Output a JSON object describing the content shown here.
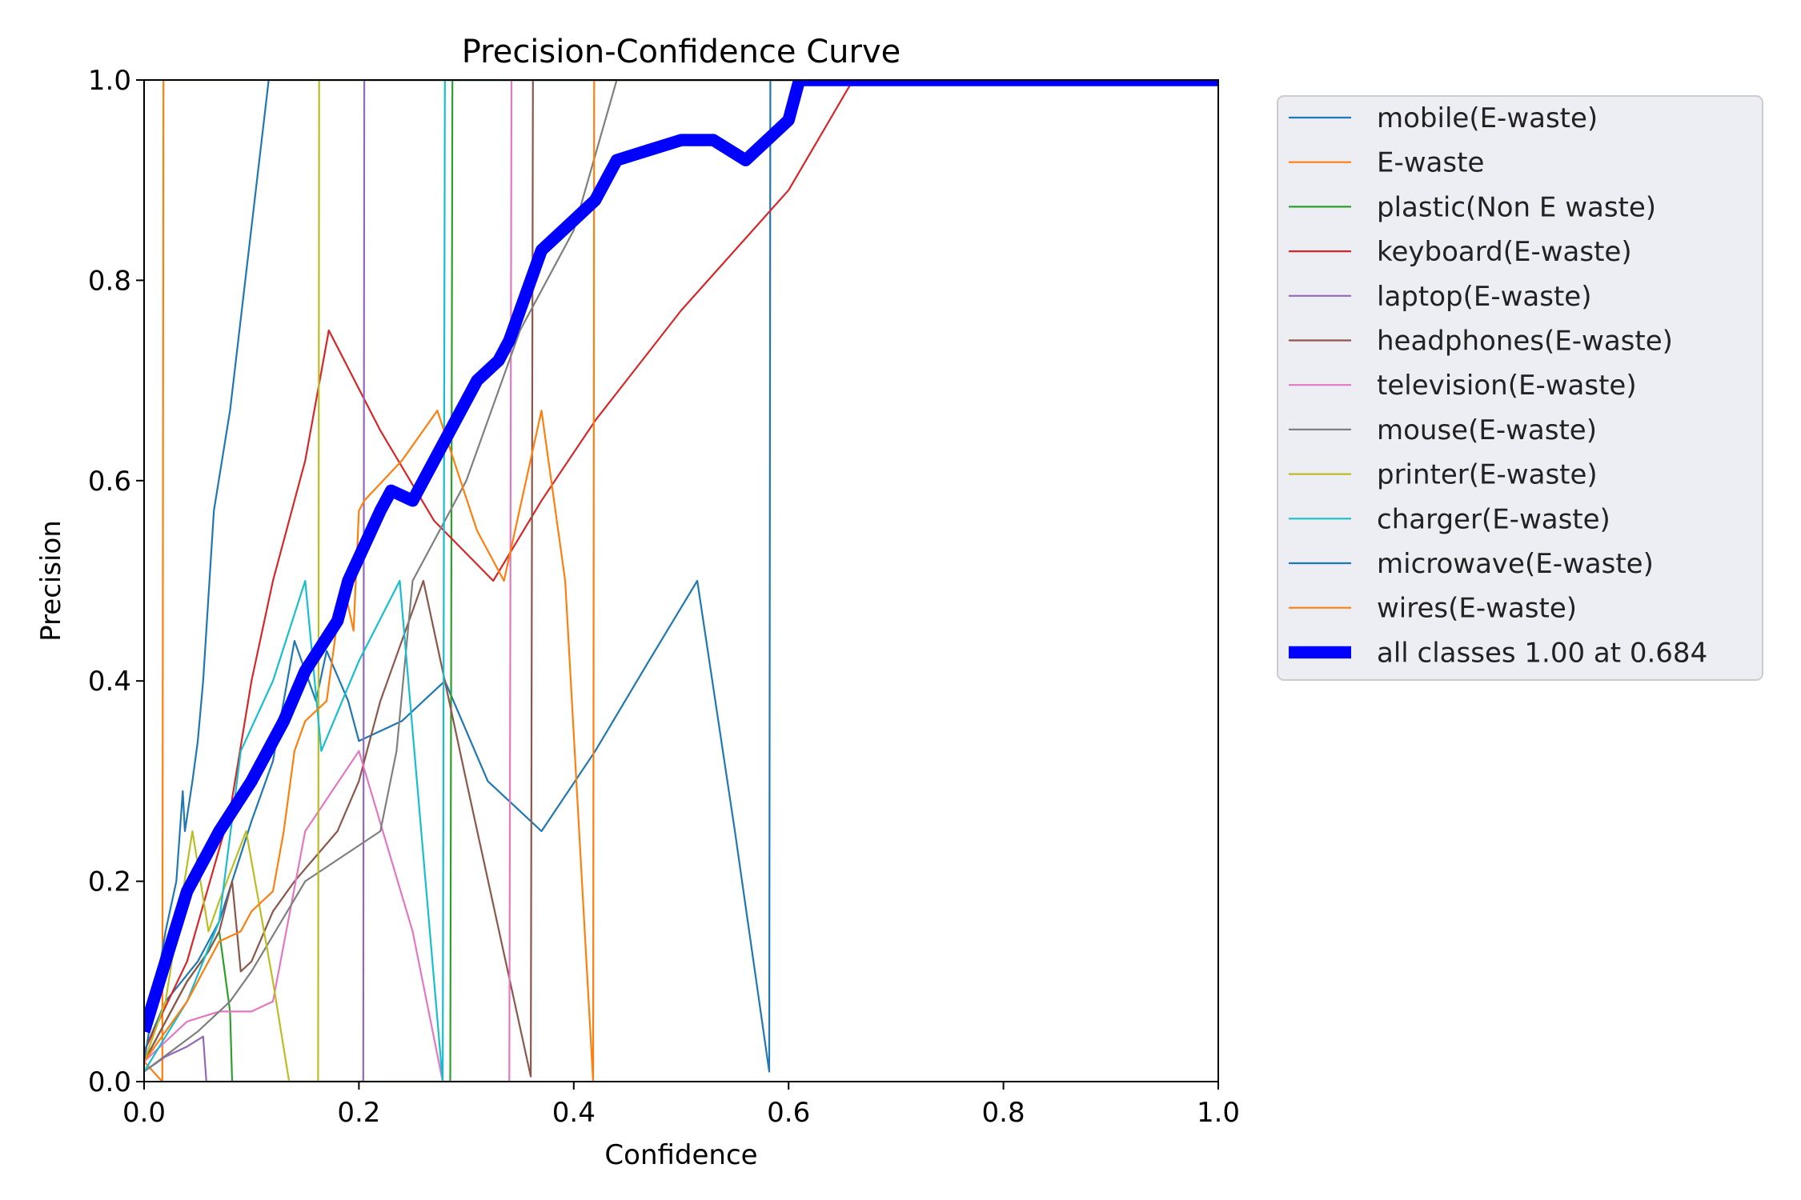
{
  "chart_data": {
    "type": "line",
    "title": "Precision-Confidence Curve",
    "xlabel": "Confidence",
    "ylabel": "Precision",
    "xlim": [
      0,
      1
    ],
    "ylim": [
      0,
      1
    ],
    "xticks": [
      "0.0",
      "0.2",
      "0.4",
      "0.6",
      "0.8",
      "1.0"
    ],
    "yticks": [
      "0.0",
      "0.2",
      "0.4",
      "0.6",
      "0.8",
      "1.0"
    ],
    "grid": false,
    "legend_position": "outside-right",
    "series": [
      {
        "name": "mobile(E-waste)",
        "color": "#1f77b4",
        "width": 1,
        "x": [
          0,
          0.02,
          0.05,
          0.07,
          0.1,
          0.12,
          0.14,
          0.16,
          0.17,
          0.19,
          0.2,
          0.24,
          0.28,
          0.32,
          0.37,
          0.42,
          0.47,
          0.515,
          0.55,
          0.582,
          0.583,
          1.0
        ],
        "y": [
          0.03,
          0.08,
          0.12,
          0.16,
          0.26,
          0.32,
          0.44,
          0.38,
          0.43,
          0.38,
          0.34,
          0.36,
          0.4,
          0.3,
          0.25,
          0.33,
          0.42,
          0.5,
          0.25,
          0.01,
          1.0,
          1.0
        ]
      },
      {
        "name": "E-waste",
        "color": "#ff7f0e",
        "width": 1,
        "x": [
          0,
          0.017,
          0.018,
          1.0
        ],
        "y": [
          0.02,
          0.0,
          1.0,
          1.0
        ]
      },
      {
        "name": "plastic(Non E waste)",
        "color": "#2ca02c",
        "width": 1,
        "x": [
          0,
          0.02,
          0.04,
          0.06,
          0.07,
          0.08,
          0.082,
          0.285,
          0.287,
          1.0
        ],
        "y": [
          0.02,
          0.06,
          0.1,
          0.13,
          0.15,
          0.07,
          0.0,
          0.0,
          1.0,
          1.0
        ]
      },
      {
        "name": "keyboard(E-waste)",
        "color": "#d62728",
        "width": 1,
        "x": [
          0,
          0.04,
          0.08,
          0.1,
          0.12,
          0.15,
          0.172,
          0.22,
          0.27,
          0.325,
          0.37,
          0.42,
          0.5,
          0.6,
          0.66,
          1.0
        ],
        "y": [
          0.03,
          0.12,
          0.27,
          0.4,
          0.5,
          0.62,
          0.75,
          0.65,
          0.56,
          0.5,
          0.58,
          0.66,
          0.77,
          0.89,
          1.0,
          1.0
        ]
      },
      {
        "name": "laptop(E-waste)",
        "color": "#9467bd",
        "width": 1,
        "x": [
          0,
          0.02,
          0.04,
          0.055,
          0.058,
          0.204,
          0.205,
          1.0
        ],
        "y": [
          0.01,
          0.025,
          0.035,
          0.045,
          0.0,
          0.0,
          1.0,
          1.0
        ]
      },
      {
        "name": "headphones(E-waste)",
        "color": "#8c564b",
        "width": 1,
        "x": [
          0,
          0.04,
          0.06,
          0.07,
          0.082,
          0.09,
          0.1,
          0.12,
          0.14,
          0.18,
          0.2,
          0.22,
          0.26,
          0.3,
          0.36,
          0.362,
          1.0
        ],
        "y": [
          0.02,
          0.1,
          0.13,
          0.15,
          0.2,
          0.11,
          0.12,
          0.17,
          0.2,
          0.25,
          0.3,
          0.38,
          0.5,
          0.3,
          0.005,
          1.0,
          1.0
        ]
      },
      {
        "name": "television(E-waste)",
        "color": "#e377c2",
        "width": 1,
        "x": [
          0,
          0.04,
          0.07,
          0.1,
          0.12,
          0.15,
          0.2,
          0.25,
          0.278,
          0.34,
          0.342,
          1.0
        ],
        "y": [
          0.02,
          0.06,
          0.07,
          0.07,
          0.08,
          0.25,
          0.33,
          0.15,
          0.0,
          0.0,
          1.0,
          1.0
        ]
      },
      {
        "name": "mouse(E-waste)",
        "color": "#7f7f7f",
        "width": 1,
        "x": [
          0,
          0.05,
          0.08,
          0.1,
          0.15,
          0.22,
          0.235,
          0.25,
          0.3,
          0.35,
          0.4,
          0.44,
          1.0
        ],
        "y": [
          0.01,
          0.05,
          0.08,
          0.11,
          0.2,
          0.25,
          0.33,
          0.5,
          0.6,
          0.75,
          0.85,
          1.0,
          1.0
        ]
      },
      {
        "name": "printer(E-waste)",
        "color": "#bcbd22",
        "width": 1,
        "x": [
          0,
          0.02,
          0.045,
          0.06,
          0.07,
          0.095,
          0.12,
          0.135,
          0.162,
          0.163,
          1.0
        ],
        "y": [
          0.02,
          0.08,
          0.25,
          0.15,
          0.18,
          0.25,
          0.1,
          0.0,
          0.0,
          1.0,
          1.0
        ]
      },
      {
        "name": "charger(E-waste)",
        "color": "#17becf",
        "width": 1,
        "x": [
          0,
          0.04,
          0.07,
          0.09,
          0.12,
          0.15,
          0.165,
          0.2,
          0.238,
          0.278,
          0.28,
          1.0
        ],
        "y": [
          0.01,
          0.08,
          0.16,
          0.33,
          0.4,
          0.5,
          0.33,
          0.42,
          0.5,
          0.0,
          1.0,
          1.0
        ]
      },
      {
        "name": "microwave(E-waste)",
        "color": "#1f77b4",
        "width": 1,
        "x": [
          0,
          0.02,
          0.03,
          0.036,
          0.038,
          0.045,
          0.05,
          0.055,
          0.065,
          0.08,
          0.116,
          1.0
        ],
        "y": [
          0.02,
          0.15,
          0.2,
          0.29,
          0.25,
          0.3,
          0.34,
          0.4,
          0.57,
          0.67,
          1.0,
          1.0
        ]
      },
      {
        "name": "wires(E-waste)",
        "color": "#ff7f0e",
        "width": 1,
        "x": [
          0,
          0.04,
          0.07,
          0.09,
          0.1,
          0.12,
          0.13,
          0.14,
          0.15,
          0.17,
          0.185,
          0.195,
          0.2,
          0.205,
          0.24,
          0.273,
          0.31,
          0.335,
          0.37,
          0.392,
          0.418,
          0.419,
          1.0
        ],
        "y": [
          0.02,
          0.08,
          0.14,
          0.15,
          0.17,
          0.19,
          0.25,
          0.33,
          0.36,
          0.38,
          0.5,
          0.45,
          0.57,
          0.58,
          0.62,
          0.67,
          0.55,
          0.5,
          0.67,
          0.5,
          0.0,
          1.0,
          1.0
        ]
      },
      {
        "name": "all classes 1.00 at 0.684",
        "color": "#0000ff",
        "width": 7,
        "x": [
          0,
          0.02,
          0.04,
          0.07,
          0.1,
          0.13,
          0.15,
          0.18,
          0.19,
          0.22,
          0.23,
          0.25,
          0.27,
          0.3,
          0.31,
          0.33,
          0.34,
          0.37,
          0.39,
          0.42,
          0.44,
          0.47,
          0.5,
          0.53,
          0.56,
          0.6,
          0.61,
          0.684,
          1.0
        ],
        "y": [
          0.05,
          0.12,
          0.19,
          0.25,
          0.3,
          0.36,
          0.41,
          0.46,
          0.5,
          0.57,
          0.59,
          0.58,
          0.62,
          0.68,
          0.7,
          0.72,
          0.74,
          0.83,
          0.85,
          0.88,
          0.92,
          0.93,
          0.94,
          0.94,
          0.92,
          0.96,
          1.0,
          1.0,
          1.0
        ]
      }
    ]
  }
}
